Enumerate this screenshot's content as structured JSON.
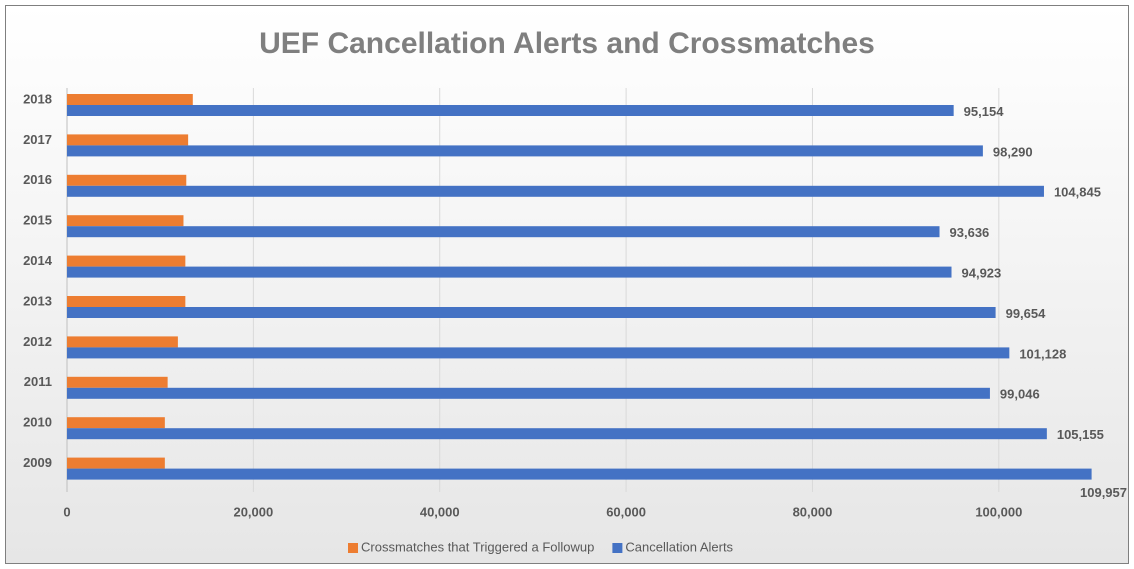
{
  "chart_data": {
    "type": "hbar",
    "title": "UEF Cancellation Alerts and Crossmatches",
    "categories": [
      "2018",
      "2017",
      "2016",
      "2015",
      "2014",
      "2013",
      "2012",
      "2011",
      "2010",
      "2009"
    ],
    "series": [
      {
        "name": "Crossmatches that Triggered a Followup",
        "color": "#ed7d31",
        "values": [
          13500,
          13000,
          12800,
          12500,
          12700,
          12700,
          11900,
          10800,
          10500,
          10500
        ]
      },
      {
        "name": "Cancellation Alerts",
        "color": "#4472c4",
        "values": [
          95154,
          98290,
          104845,
          93636,
          94923,
          99654,
          101128,
          99046,
          105155,
          109957
        ],
        "value_labels": [
          "95,154",
          "98,290",
          "104,845",
          "93,636",
          "94,923",
          "99,654",
          "101,128",
          "99,046",
          "105,155",
          "109,957"
        ]
      }
    ],
    "xlim": [
      0,
      110000
    ],
    "xticks": [
      0,
      {
        "value": 20000,
        "label": "20,000"
      },
      {
        "value": 40000,
        "label": "40,000"
      },
      {
        "value": 60000,
        "label": "60,000"
      },
      {
        "value": 80000,
        "label": "80,000"
      },
      {
        "value": 100000,
        "label": "100,000"
      }
    ],
    "grid": true,
    "legend": "bottom"
  }
}
